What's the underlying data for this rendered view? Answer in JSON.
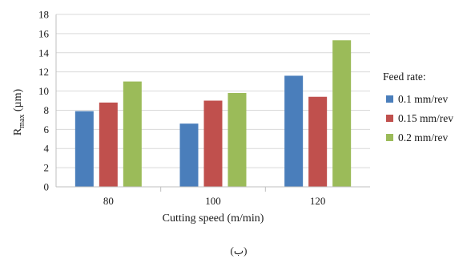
{
  "chart_data": {
    "type": "bar",
    "categories": [
      "80",
      "100",
      "120"
    ],
    "series": [
      {
        "name": "0.1 mm/rev",
        "values": [
          7.9,
          6.6,
          11.6
        ],
        "color": "#4a7ebb"
      },
      {
        "name": "0.15 mm/rev",
        "values": [
          8.8,
          9.0,
          9.4
        ],
        "color": "#c0504d"
      },
      {
        "name": "0.2 mm/rev",
        "values": [
          11.0,
          9.8,
          15.3
        ],
        "color": "#9bbb59"
      }
    ],
    "xlabel": "Cutting speed (m/min)",
    "ylabel_main": "R",
    "ylabel_sub": "max",
    "ylabel_unit": " (µm)",
    "ylim": [
      0,
      18
    ],
    "yticks": [
      0,
      2,
      4,
      6,
      8,
      10,
      12,
      14,
      16,
      18
    ],
    "grid": true,
    "legend_title": "Feed rate:",
    "legend_position": "right"
  },
  "caption": "(ب)"
}
